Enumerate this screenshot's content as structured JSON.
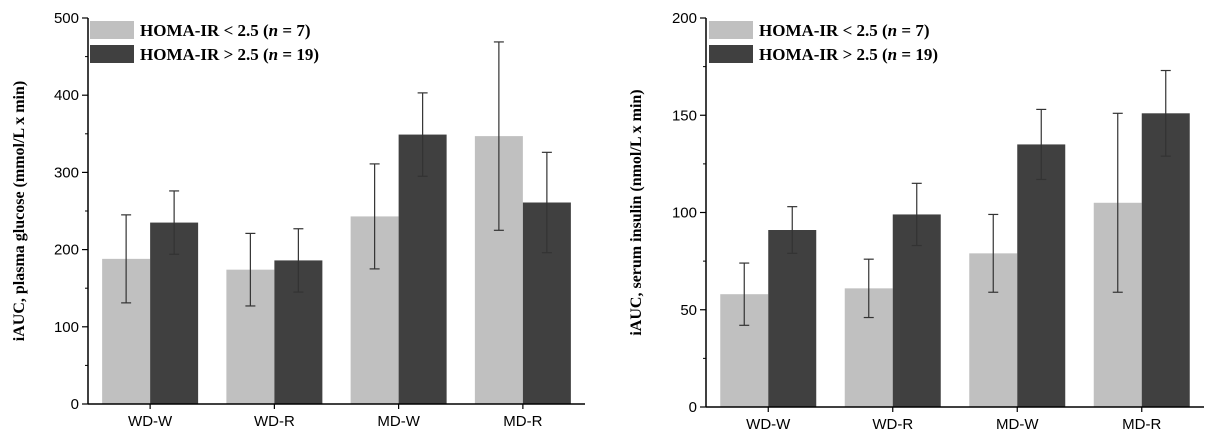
{
  "colors": {
    "series_light": "#c0c0c0",
    "series_dark": "#404040",
    "axis": "#000000",
    "error_bar": "#333333"
  },
  "chart_data": [
    {
      "type": "bar",
      "ylabel": "iAUC, plasma glucose (mmol/L x min)",
      "categories": [
        "WD-W",
        "WD-R",
        "MD-W",
        "MD-R"
      ],
      "ylim": [
        0,
        500
      ],
      "yticks": [
        0,
        100,
        200,
        300,
        400,
        500
      ],
      "legend": {
        "position": "top-left"
      },
      "series": [
        {
          "name_parts": [
            "HOMA-IR < 2.5 (",
            "n",
            " = 7)"
          ],
          "color": "#c0c0c0",
          "values": [
            188,
            174,
            243,
            347
          ],
          "error": [
            57,
            47,
            68,
            122
          ]
        },
        {
          "name_parts": [
            "HOMA-IR > 2.5 (",
            "n",
            " = 19)"
          ],
          "color": "#404040",
          "values": [
            235,
            186,
            349,
            261
          ],
          "error": [
            41,
            41,
            54,
            65
          ]
        }
      ]
    },
    {
      "type": "bar",
      "ylabel": "iAUC, serum insulin (nmol/L x min)",
      "categories": [
        "WD-W",
        "WD-R",
        "MD-W",
        "MD-R"
      ],
      "ylim": [
        0,
        200
      ],
      "yticks": [
        0,
        50,
        100,
        150,
        200
      ],
      "legend": {
        "position": "top-left"
      },
      "series": [
        {
          "name_parts": [
            "HOMA-IR < 2.5 (",
            "n",
            " = 7)"
          ],
          "color": "#c0c0c0",
          "values": [
            58,
            61,
            79,
            105
          ],
          "error": [
            16,
            15,
            20,
            46
          ]
        },
        {
          "name_parts": [
            "HOMA-IR > 2.5 (",
            "n",
            " = 19)"
          ],
          "color": "#404040",
          "values": [
            91,
            99,
            135,
            151
          ],
          "error": [
            12,
            16,
            18,
            22
          ]
        }
      ]
    }
  ]
}
